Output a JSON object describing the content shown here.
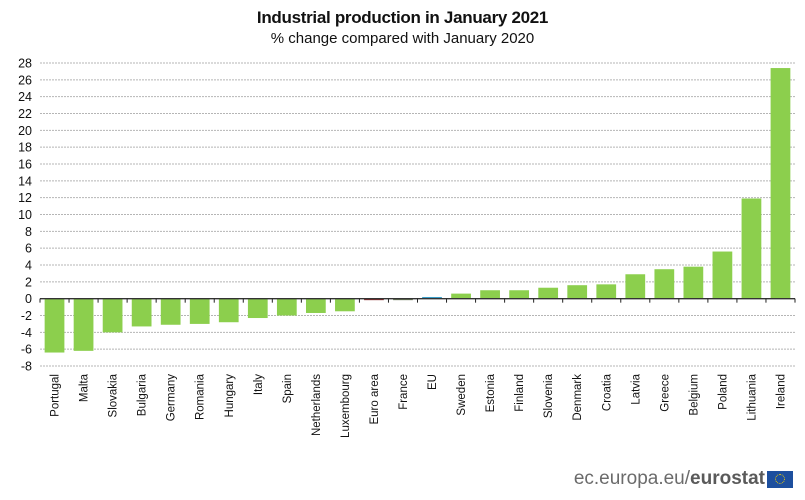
{
  "chart_data": {
    "type": "bar",
    "title": "Industrial production in January 2021",
    "subtitle": "% change compared with January 2020",
    "xlabel": "",
    "ylabel": "",
    "ylim": [
      -8,
      28
    ],
    "yticks": [
      28,
      26,
      24,
      22,
      20,
      18,
      16,
      14,
      12,
      10,
      8,
      6,
      4,
      2,
      0,
      -2,
      -4,
      -6,
      -8
    ],
    "grid": true,
    "legend": "none",
    "categories": [
      "Portugal",
      "Malta",
      "Slovakia",
      "Bulgaria",
      "Germany",
      "Romania",
      "Hungary",
      "Italy",
      "Spain",
      "Netherlands",
      "Luxembourg",
      "Euro area",
      "France",
      "EU",
      "Sweden",
      "Estonia",
      "Finland",
      "Slovenia",
      "Denmark",
      "Croatia",
      "Latvia",
      "Greece",
      "Belgium",
      "Poland",
      "Lithuania",
      "Ireland"
    ],
    "values": [
      -6.4,
      -6.2,
      -4.0,
      -3.3,
      -3.1,
      -3.0,
      -2.8,
      -2.3,
      -2.0,
      -1.7,
      -1.5,
      -0.1,
      -0.1,
      0.2,
      0.6,
      1.0,
      1.0,
      1.3,
      1.6,
      1.7,
      2.9,
      3.5,
      3.8,
      5.6,
      11.9,
      27.4
    ],
    "colors": {
      "default": "#8ccf4d",
      "Euro area": "#8b2a2a",
      "France": "#6f7d5a",
      "EU": "#3a9dc8"
    }
  },
  "footer": {
    "site": "ec.europa.eu/",
    "brand": "eurostat"
  }
}
